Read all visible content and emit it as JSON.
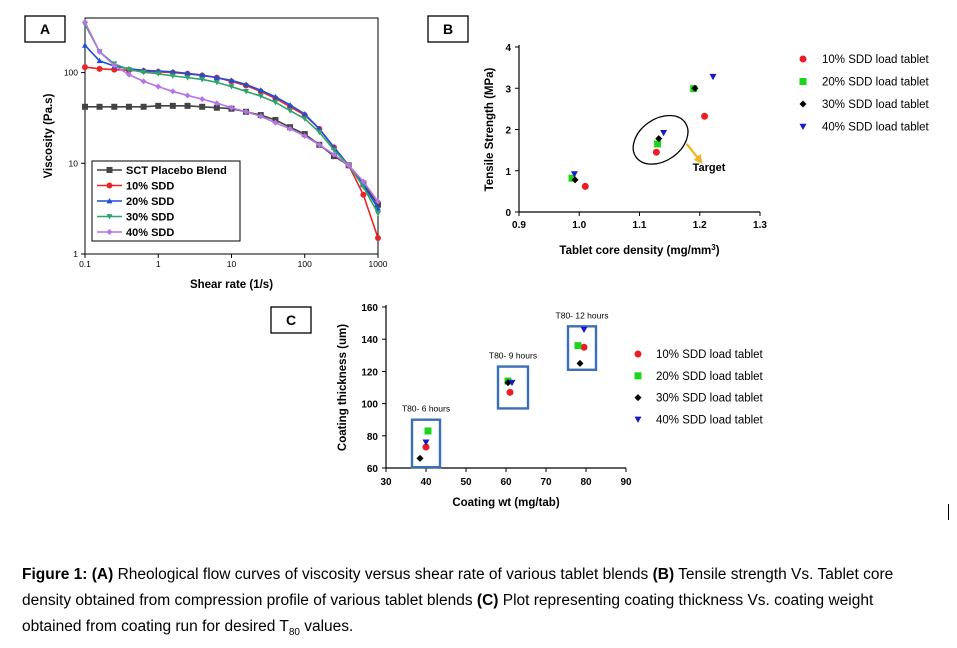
{
  "chart_data": [
    {
      "panel_label": "A",
      "type": "line",
      "xlabel": "Shear rate (1/s)",
      "ylabel": "Viscosity (Pa.s)",
      "xscale": "log",
      "yscale": "log",
      "xlim": [
        0.1,
        1000
      ],
      "ylim": [
        1,
        400
      ],
      "xticks": [
        0.1,
        1,
        10,
        100,
        1000
      ],
      "xtick_labels": [
        "0.1",
        "1",
        "10",
        "100",
        "1000"
      ],
      "yticks": [
        1,
        10,
        100
      ],
      "ytick_labels": [
        "1",
        "10",
        "100"
      ],
      "legend_position": "bottom-left",
      "grid": false,
      "series": [
        {
          "name": "SCT Placebo Blend",
          "color": "#444444",
          "marker": "square",
          "x": [
            0.1,
            0.158,
            0.251,
            0.398,
            0.631,
            1,
            1.58,
            2.51,
            3.98,
            6.31,
            10,
            15.8,
            25.1,
            39.8,
            63.1,
            100,
            158,
            251,
            398,
            631,
            1000
          ],
          "y": [
            42,
            42,
            42,
            42,
            42,
            43,
            43,
            43,
            42,
            41,
            40,
            37,
            34,
            30,
            25,
            21,
            16,
            12,
            9.5,
            6,
            3.5
          ]
        },
        {
          "name": "10% SDD",
          "color": "#e8262a",
          "marker": "circle",
          "x": [
            0.1,
            0.158,
            0.251,
            0.398,
            0.631,
            1,
            1.58,
            2.51,
            3.98,
            6.31,
            10,
            15.8,
            25.1,
            39.8,
            63.1,
            100,
            158,
            251,
            398,
            631,
            1000
          ],
          "y": [
            115,
            110,
            108,
            106,
            104,
            102,
            100,
            97,
            93,
            88,
            80,
            72,
            62,
            52,
            42,
            34,
            24,
            15,
            9.5,
            4.5,
            1.5
          ]
        },
        {
          "name": "20% SDD",
          "color": "#1f4fd6",
          "marker": "triangle-up",
          "x": [
            0.1,
            0.158,
            0.251,
            0.398,
            0.631,
            1,
            1.58,
            2.51,
            3.98,
            6.31,
            10,
            15.8,
            25.1,
            39.8,
            63.1,
            100,
            158,
            251,
            398,
            631,
            1000
          ],
          "y": [
            200,
            135,
            118,
            110,
            106,
            104,
            102,
            98,
            94,
            88,
            82,
            74,
            64,
            54,
            44,
            35,
            24,
            15,
            9.5,
            5.8,
            3.2
          ]
        },
        {
          "name": "30% SDD",
          "color": "#2fa36b",
          "marker": "triangle-down",
          "x": [
            0.1,
            0.158,
            0.251,
            0.398,
            0.631,
            1,
            1.58,
            2.51,
            3.98,
            6.31,
            10,
            15.8,
            25.1,
            39.8,
            63.1,
            100,
            158,
            251,
            398,
            631,
            1000
          ],
          "y": [
            340,
            170,
            125,
            108,
            101,
            97,
            92,
            88,
            84,
            78,
            70,
            62,
            55,
            47,
            38,
            31,
            22,
            14,
            9.5,
            5.5,
            2.8
          ]
        },
        {
          "name": "40% SDD",
          "color": "#b675e6",
          "marker": "diamond",
          "x": [
            0.1,
            0.158,
            0.251,
            0.398,
            0.631,
            1,
            1.58,
            2.51,
            3.98,
            6.31,
            10,
            15.8,
            25.1,
            39.8,
            63.1,
            100,
            158,
            251,
            398,
            631,
            1000
          ],
          "y": [
            360,
            170,
            120,
            95,
            80,
            70,
            62,
            56,
            51,
            46,
            41,
            37,
            33,
            28,
            24,
            20,
            16,
            12.5,
            9.5,
            6.3,
            3.8
          ]
        }
      ]
    },
    {
      "panel_label": "B",
      "type": "scatter",
      "xlabel": "Tablet core density (mg/mm³)",
      "ylabel": "Tensile Strength (MPa)",
      "xlim": [
        0.9,
        1.3
      ],
      "ylim": [
        0,
        4
      ],
      "xticks": [
        0.9,
        1.0,
        1.1,
        1.2,
        1.3
      ],
      "xtick_labels": [
        "0.9",
        "1.0",
        "1.1",
        "1.2",
        "1.3"
      ],
      "yticks": [
        0,
        1,
        2,
        3,
        4
      ],
      "ytick_labels": [
        "0",
        "1",
        "2",
        "3",
        "4"
      ],
      "annotation": "Target",
      "target_ellipse": {
        "cx": 1.135,
        "cy": 1.75
      },
      "legend_position": "right",
      "series": [
        {
          "name": "10% SDD load tablet",
          "color": "#ee1c24",
          "marker": "circle",
          "x": [
            1.01,
            1.128,
            1.208
          ],
          "y": [
            0.62,
            1.45,
            2.32
          ]
        },
        {
          "name": "20% SDD load tablet",
          "color": "#1bd51b",
          "marker": "square",
          "x": [
            0.988,
            1.13,
            1.19
          ],
          "y": [
            0.82,
            1.65,
            2.99
          ]
        },
        {
          "name": "30% SDD load tablet",
          "color": "#000000",
          "marker": "diamond",
          "x": [
            0.993,
            1.132,
            1.192
          ],
          "y": [
            0.78,
            1.78,
            3.0
          ]
        },
        {
          "name": "40% SDD load tablet",
          "color": "#1a1ac8",
          "marker": "triangle-down",
          "x": [
            0.992,
            1.14,
            1.222
          ],
          "y": [
            0.92,
            1.92,
            3.28
          ]
        }
      ]
    },
    {
      "panel_label": "C",
      "type": "scatter",
      "xlabel": "Coating wt (mg/tab)",
      "ylabel": "Coating thickness (um)",
      "xlim": [
        30,
        90
      ],
      "ylim": [
        60,
        160
      ],
      "xticks": [
        30,
        40,
        50,
        60,
        70,
        80,
        90
      ],
      "xtick_labels": [
        "30",
        "40",
        "50",
        "60",
        "70",
        "80",
        "90"
      ],
      "yticks": [
        60,
        80,
        100,
        120,
        140,
        160
      ],
      "ytick_labels": [
        "60",
        "80",
        "100",
        "120",
        "140",
        "160"
      ],
      "groups": [
        {
          "label": "T80- 6 hours",
          "x": [
            36.5,
            43.5
          ],
          "y": [
            60.5,
            90
          ]
        },
        {
          "label": "T80- 9 hours",
          "x": [
            58,
            65.5
          ],
          "y": [
            97,
            123
          ]
        },
        {
          "label": "T80- 12 hours",
          "x": [
            75.5,
            82.5
          ],
          "y": [
            121,
            148
          ]
        }
      ],
      "legend_position": "right",
      "series": [
        {
          "name": "10% SDD load tablet",
          "color": "#ee1c24",
          "marker": "circle",
          "x": [
            40,
            61,
            79.5
          ],
          "y": [
            73,
            107,
            135
          ]
        },
        {
          "name": "20% SDD load tablet",
          "color": "#1bd51b",
          "marker": "square",
          "x": [
            40.5,
            60.5,
            78
          ],
          "y": [
            83,
            114,
            136
          ]
        },
        {
          "name": "30% SDD load tablet",
          "color": "#000000",
          "marker": "diamond",
          "x": [
            38.5,
            60.5,
            78.5
          ],
          "y": [
            66,
            113,
            125
          ]
        },
        {
          "name": "40% SDD load tablet",
          "color": "#1a1ac8",
          "marker": "triangle-down",
          "x": [
            40,
            61.5,
            79.5
          ],
          "y": [
            76,
            113,
            146
          ]
        }
      ]
    }
  ],
  "caption": {
    "lead": "Figure 1:",
    "a_tag": "(A)",
    "a_text": " Rheological flow curves of viscosity versus shear rate of various tablet blends ",
    "b_tag": "(B)",
    "b_text": " Tensile strength Vs. Tablet core density obtained from compression profile of various tablet blends ",
    "c_tag": "(C)",
    "c_text": " Plot representing coating thickness Vs. coating weight obtained from coating run for desired T",
    "c_sub": "80",
    "c_end": " values."
  },
  "colors": {
    "group_box": "#3b6fb6",
    "target_arrow": "#f0b428"
  }
}
